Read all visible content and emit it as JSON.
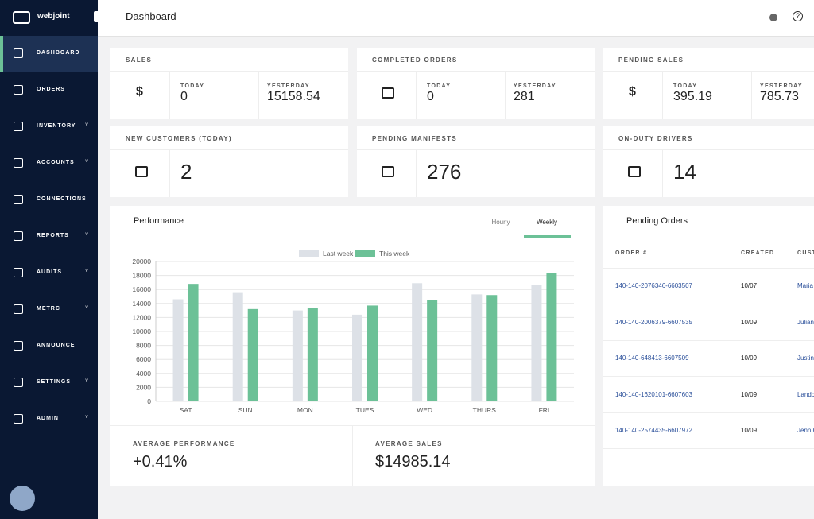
{
  "sidebar": {
    "brand": "webjoint",
    "items": [
      "DASHBOARD",
      "ORDERS",
      "INVENTORY",
      "ACCOUNTS",
      "CONNECTIONS",
      "REPORTS",
      "AUDITS",
      "METRC",
      "ANNOUNCE",
      "SETTINGS",
      "ADMIN"
    ],
    "expandable": [
      false,
      false,
      true,
      true,
      false,
      true,
      true,
      true,
      false,
      true,
      true
    ]
  },
  "header": {
    "title": "Dashboard"
  },
  "cards": [
    {
      "title": "SALES",
      "icon": "$",
      "today_label": "TODAY",
      "today": "0",
      "yesterday_label": "YESTERDAY",
      "yesterday": "15158.54"
    },
    {
      "title": "COMPLETED ORDERS",
      "today_label": "TODAY",
      "today": "0",
      "yesterday_label": "YESTERDAY",
      "yesterday": "281"
    },
    {
      "title": "PENDING SALES",
      "icon": "$",
      "today_label": "TODAY",
      "today": "395.19",
      "yesterday_label": "YESTERDAY",
      "yesterday": "785.73"
    },
    {
      "title": "NEW CUSTOMERS (TODAY)",
      "value": "2"
    },
    {
      "title": "PENDING MANIFESTS",
      "value": "276"
    },
    {
      "title": "ON-DUTY DRIVERS",
      "value": "14"
    }
  ],
  "performance": {
    "title": "Performance",
    "tabs": [
      "Hourly",
      "Weekly"
    ],
    "active_tab": 1,
    "stats": [
      {
        "label": "AVERAGE PERFORMANCE",
        "value": "+0.41%"
      },
      {
        "label": "AVERAGE SALES",
        "value": "$14985.14"
      }
    ]
  },
  "chart_data": {
    "type": "bar",
    "categories": [
      "SAT",
      "SUN",
      "MON",
      "TUES",
      "WED",
      "THURS",
      "FRI"
    ],
    "series": [
      {
        "name": "Last week",
        "color": "#dde1e7",
        "values": [
          14600,
          15500,
          13000,
          12400,
          16900,
          15300,
          16700
        ]
      },
      {
        "name": "This week",
        "color": "#6cc197",
        "values": [
          16800,
          13200,
          13300,
          13700,
          14500,
          15200,
          18300
        ]
      }
    ],
    "ylim": [
      0,
      20000
    ],
    "yticks": [
      0,
      2000,
      4000,
      6000,
      8000,
      10000,
      12000,
      14000,
      16000,
      18000,
      20000
    ],
    "grid": true,
    "legend": "top"
  },
  "pending_orders": {
    "title": "Pending Orders",
    "columns": [
      "ORDER #",
      "CREATED",
      "CUST"
    ],
    "rows": [
      [
        "140-140-2076346-6603507",
        "10/07",
        "Maria"
      ],
      [
        "140-140-2006379-6607535",
        "10/09",
        "Julian"
      ],
      [
        "140-140-648413-6607509",
        "10/09",
        "Justin"
      ],
      [
        "140-140-1620101-6607603",
        "10/09",
        "Lando"
      ],
      [
        "140-140-2574435-6607972",
        "10/09",
        "Jenn C"
      ]
    ]
  }
}
